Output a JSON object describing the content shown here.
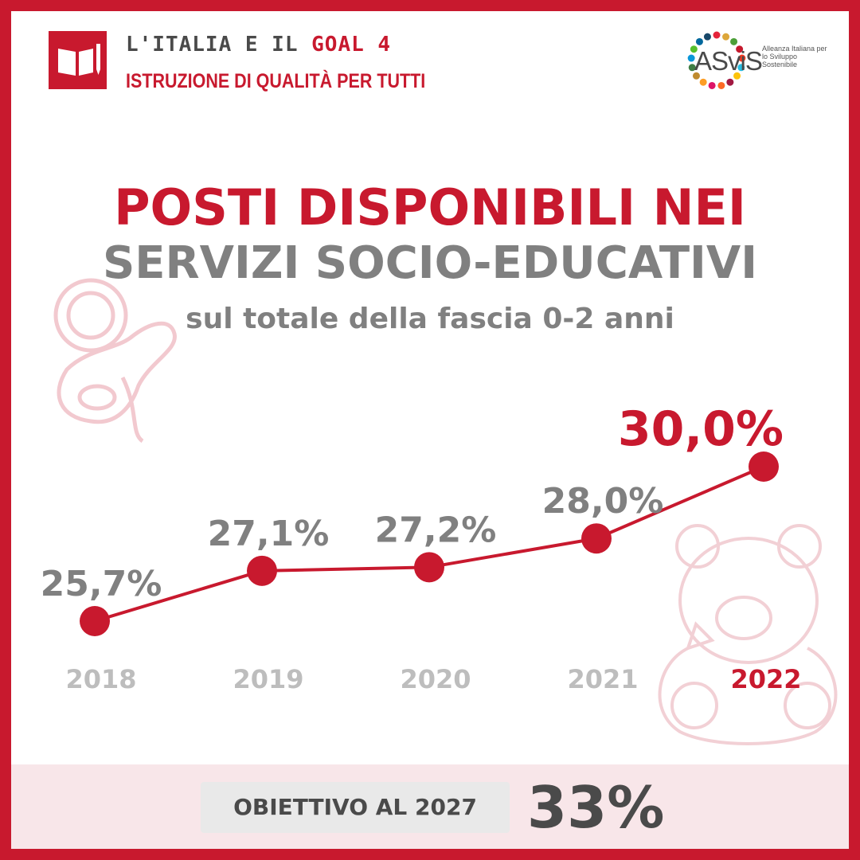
{
  "header": {
    "line1_prefix": "L'ITALIA E IL ",
    "line1_accent": "GOAL 4",
    "line2": "ISTRUZIONE DI QUALITÀ PER TUTTI"
  },
  "logo": {
    "text": "ASviS",
    "subtitle": "Alleanza Italiana per lo Sviluppo Sostenibile"
  },
  "colors": {
    "accent": "#c8192e",
    "text_gray": "#808080",
    "light_gray": "#bdbdbd",
    "footer_bg": "#f8e6e9"
  },
  "chart_data": {
    "type": "line",
    "title": "POSTI DISPONIBILI NEI",
    "title_line2": "SERVIZI SOCIO-EDUCATIVI",
    "subtitle": "sul totale della fascia 0-2 anni",
    "x": [
      "2018",
      "2019",
      "2020",
      "2021",
      "2022"
    ],
    "values": [
      25.7,
      27.1,
      27.2,
      28.0,
      30.0
    ],
    "value_labels": [
      "25,7%",
      "27,1%",
      "27,2%",
      "28,0%",
      "30,0%"
    ],
    "unit": "%",
    "grid": false,
    "highlight_last": true
  },
  "target": {
    "label": "OBIETTIVO AL 2027",
    "value": "33%"
  }
}
